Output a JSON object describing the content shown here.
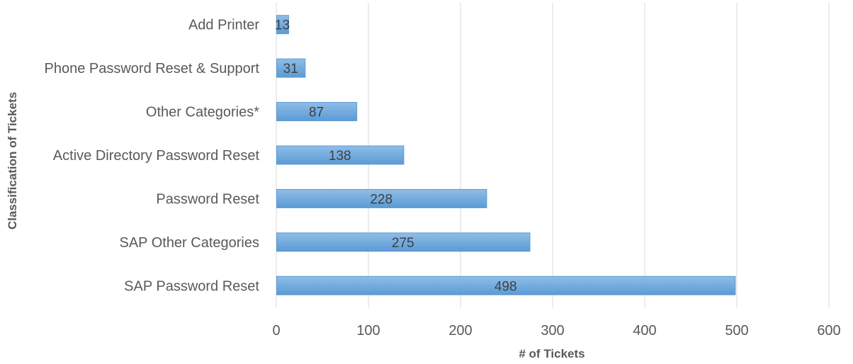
{
  "chart_data": {
    "type": "bar",
    "orientation": "horizontal",
    "categories": [
      "SAP Password Reset",
      "SAP Other Categories",
      "Password Reset",
      "Active Directory Password Reset",
      "Other Categories*",
      "Phone Password Reset & Support",
      "Add Printer"
    ],
    "values": [
      498,
      275,
      228,
      138,
      87,
      31,
      13
    ],
    "xlabel": "# of Tickets",
    "ylabel": "Classification of Tickets",
    "xlim": [
      0,
      600
    ],
    "xticks": [
      0,
      100,
      200,
      300,
      400,
      500,
      600
    ],
    "grid": true,
    "legend": "none",
    "bar_color": "#5b9bd5",
    "bar_color_light": "#8fbde8",
    "data_labels": true
  }
}
